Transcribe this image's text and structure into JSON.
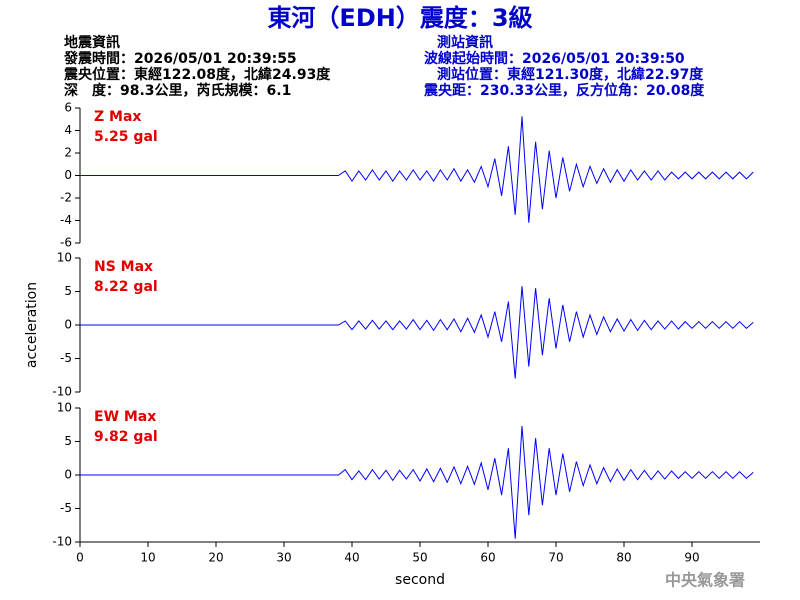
{
  "header": {
    "title": "東河（EDH）震度：3級",
    "event": [
      "地震資訊",
      "發震時間：2026/05/01 20:39:55",
      "震央位置：東經122.08度，北緯24.93度",
      "深　度：98.3公里，芮氏規模：6.1"
    ],
    "station": [
      "測站資訊",
      "波線起始時間：2026/05/01 20:39:50",
      "測站位置：東經121.30度，北緯22.97度",
      "震央距：230.33公里，反方位角：20.08度"
    ],
    "footer": "中央氣象署"
  },
  "chart_data": [
    {
      "type": "line",
      "label": "Z Max",
      "max": "5.25 gal",
      "color": "#0000ff",
      "ylim": [
        -6,
        6
      ],
      "yticks": [
        6,
        4,
        2,
        0,
        -2,
        -4,
        -6
      ],
      "x": [
        0,
        21,
        38,
        39,
        40,
        41,
        42,
        43,
        44,
        45,
        46,
        47,
        48,
        49,
        50,
        51,
        52,
        53,
        54,
        55,
        56,
        57,
        58,
        59,
        60,
        61,
        62,
        63,
        64,
        65,
        66,
        67,
        68,
        69,
        70,
        71,
        72,
        73,
        74,
        75,
        76,
        77,
        78,
        79,
        80,
        81,
        82,
        83,
        84,
        85,
        86,
        87,
        88,
        89,
        90,
        91,
        92,
        93,
        94,
        95,
        96,
        97,
        98,
        99
      ],
      "values": [
        0,
        0,
        0,
        0.4,
        -0.5,
        0.4,
        -0.4,
        0.5,
        -0.4,
        0.4,
        -0.5,
        0.4,
        -0.4,
        0.5,
        -0.4,
        0.4,
        -0.5,
        0.5,
        -0.4,
        0.6,
        -0.5,
        0.5,
        -0.6,
        0.8,
        -1.0,
        1.5,
        -1.8,
        2.6,
        -3.5,
        5.25,
        -4.2,
        3.0,
        -3.0,
        2.2,
        -2.0,
        1.6,
        -1.4,
        1.0,
        -1.0,
        0.8,
        -0.7,
        0.6,
        -0.6,
        0.5,
        -0.5,
        0.5,
        -0.4,
        0.4,
        -0.4,
        0.4,
        -0.4,
        0.3,
        -0.3,
        0.3,
        -0.3,
        0.3,
        -0.3,
        0.3,
        -0.3,
        0.3,
        -0.3,
        0.3,
        -0.3,
        0.3
      ]
    },
    {
      "type": "line",
      "label": "NS Max",
      "max": "8.22 gal",
      "color": "#0000ff",
      "ylabel": "acceleration",
      "ylim": [
        -10,
        10
      ],
      "yticks": [
        10,
        5,
        0,
        -5,
        -10
      ],
      "x": [
        0,
        21,
        38,
        39,
        40,
        41,
        42,
        43,
        44,
        45,
        46,
        47,
        48,
        49,
        50,
        51,
        52,
        53,
        54,
        55,
        56,
        57,
        58,
        59,
        60,
        61,
        62,
        63,
        64,
        65,
        66,
        67,
        68,
        69,
        70,
        71,
        72,
        73,
        74,
        75,
        76,
        77,
        78,
        79,
        80,
        81,
        82,
        83,
        84,
        85,
        86,
        87,
        88,
        89,
        90,
        91,
        92,
        93,
        94,
        95,
        96,
        97,
        98,
        99
      ],
      "values": [
        0,
        0,
        0,
        0.6,
        -0.7,
        0.6,
        -0.6,
        0.7,
        -0.6,
        0.6,
        -0.7,
        0.6,
        -0.6,
        0.8,
        -0.7,
        0.7,
        -0.8,
        0.8,
        -0.7,
        0.9,
        -1.0,
        1.0,
        -1.1,
        1.5,
        -1.8,
        2.0,
        -2.5,
        3.5,
        -8.0,
        5.8,
        -6.2,
        5.5,
        -4.5,
        4.0,
        -3.5,
        3.0,
        -2.5,
        2.0,
        -1.8,
        1.5,
        -1.4,
        1.2,
        -1.0,
        0.9,
        -0.9,
        0.8,
        -0.8,
        0.7,
        -0.7,
        0.6,
        -0.6,
        0.6,
        -0.6,
        0.5,
        -0.5,
        0.5,
        -0.5,
        0.5,
        -0.5,
        0.5,
        -0.5,
        0.5,
        -0.5,
        0.4
      ]
    },
    {
      "type": "line",
      "label": "EW Max",
      "max": "9.82 gal",
      "color": "#0000ff",
      "xlabel": "second",
      "ylim": [
        -10,
        10
      ],
      "yticks": [
        10,
        5,
        0,
        -5,
        -10
      ],
      "xlim": [
        0,
        100
      ],
      "xticks": [
        0,
        10,
        20,
        30,
        40,
        50,
        60,
        70,
        80,
        90
      ],
      "x": [
        0,
        21,
        38,
        39,
        40,
        41,
        42,
        43,
        44,
        45,
        46,
        47,
        48,
        49,
        50,
        51,
        52,
        53,
        54,
        55,
        56,
        57,
        58,
        59,
        60,
        61,
        62,
        63,
        64,
        65,
        66,
        67,
        68,
        69,
        70,
        71,
        72,
        73,
        74,
        75,
        76,
        77,
        78,
        79,
        80,
        81,
        82,
        83,
        84,
        85,
        86,
        87,
        88,
        89,
        90,
        91,
        92,
        93,
        94,
        95,
        96,
        97,
        98,
        99
      ],
      "values": [
        0,
        0,
        0,
        0.8,
        -0.7,
        0.6,
        -0.7,
        0.8,
        -0.6,
        0.7,
        -0.8,
        0.7,
        -0.6,
        0.8,
        -0.9,
        0.9,
        -1.0,
        1.0,
        -1.1,
        1.2,
        -1.3,
        1.3,
        -1.4,
        1.8,
        -2.2,
        2.5,
        -3.0,
        4.0,
        -9.5,
        7.3,
        -6.0,
        5.5,
        -4.5,
        4.0,
        -3.0,
        3.2,
        -2.5,
        2.0,
        -1.6,
        1.5,
        -1.3,
        1.1,
        -1.0,
        0.9,
        -0.8,
        0.8,
        -0.7,
        0.7,
        -0.7,
        0.6,
        -0.6,
        0.6,
        -0.5,
        0.5,
        -0.5,
        0.5,
        -0.5,
        0.5,
        -0.5,
        0.5,
        -0.5,
        0.5,
        -0.5,
        0.4
      ]
    }
  ]
}
